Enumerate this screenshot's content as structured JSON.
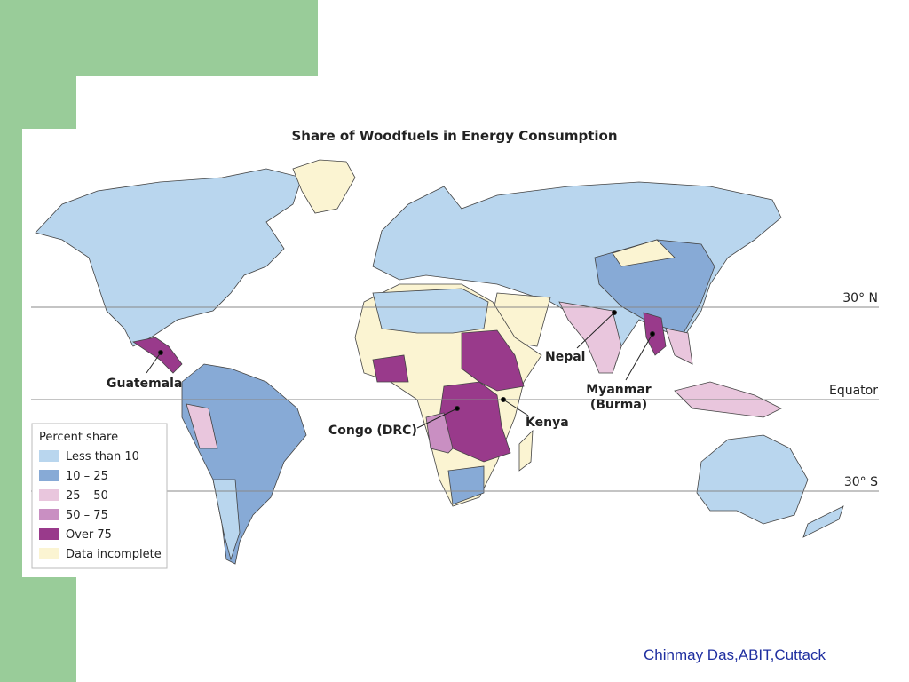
{
  "header": {
    "title": "Share of Woodfuels in Energy Consumption"
  },
  "latitudes": [
    "30° N",
    "Equator",
    "30° S"
  ],
  "labels": [
    "Guatemala",
    "Congo (DRC)",
    "Kenya",
    "Nepal",
    "Myanmar\n(Burma)"
  ],
  "legend": {
    "title": "Percent share",
    "items": [
      {
        "label": "Less than 10",
        "color": "#b9d6ee"
      },
      {
        "label": "10 – 25",
        "color": "#87aad6"
      },
      {
        "label": "25 – 50",
        "color": "#e9c6dd"
      },
      {
        "label": "50 – 75",
        "color": "#c98fc2"
      },
      {
        "label": "Over 75",
        "color": "#993a8b"
      },
      {
        "label": "Data incomplete",
        "color": "#fbf4d2"
      }
    ]
  },
  "footer": "Chinmay Das,ABIT,Cuttack"
}
